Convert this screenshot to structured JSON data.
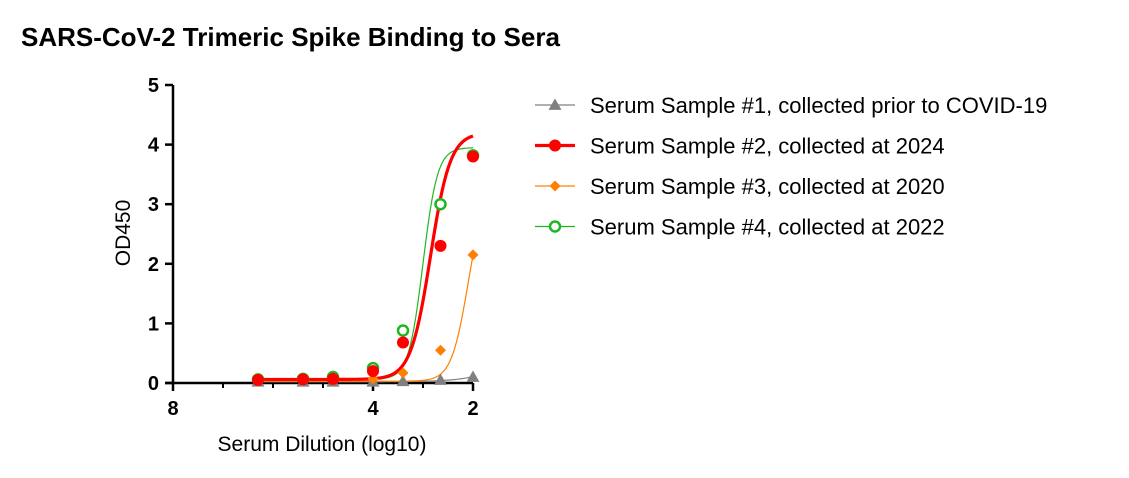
{
  "chart_data": {
    "type": "line",
    "title": "SARS-CoV-2 Trimeric Spike Binding to Sera",
    "xlabel": "Serum Dilution (log10)",
    "ylabel": "OD450",
    "xlim": [
      8,
      2
    ],
    "ylim": [
      0,
      5
    ],
    "x_reversed": true,
    "xticks": [
      "8",
      "4",
      "2"
    ],
    "yticks": [
      "0",
      "1",
      "2",
      "3",
      "4",
      "5"
    ],
    "legend_position": "right",
    "series": [
      {
        "name": "Serum Sample #1, collected prior to COVID-19",
        "color": "#808080",
        "marker": "triangle-filled",
        "line_width": "thin",
        "x": [
          6.3,
          5.4,
          4.8,
          4.0,
          3.4,
          2.65,
          2.0
        ],
        "y": [
          0.02,
          0.02,
          0.02,
          0.02,
          0.03,
          0.05,
          0.1
        ],
        "fit": {
          "bottom": 0.02,
          "top": 4.5,
          "logEC50": 0.3,
          "hill": 1.0
        }
      },
      {
        "name": "Serum Sample #2, collected at 2024",
        "color": "#ff0000",
        "marker": "circle-filled",
        "line_width": "thick",
        "x": [
          6.3,
          5.4,
          4.8,
          4.0,
          3.4,
          2.65,
          2.0
        ],
        "y": [
          0.05,
          0.06,
          0.07,
          0.2,
          0.68,
          2.3,
          3.8
        ],
        "fit": {
          "bottom": 0.06,
          "top": 4.2,
          "logEC50": 2.85,
          "hill": 2.2
        }
      },
      {
        "name": "Serum Sample #3, collected at 2020",
        "color": "#ff8000",
        "marker": "diamond-filled",
        "line_width": "thin",
        "x": [
          6.3,
          5.4,
          4.8,
          4.0,
          3.4,
          2.65,
          2.0
        ],
        "y": [
          0.03,
          0.04,
          0.05,
          0.07,
          0.17,
          0.55,
          2.15
        ],
        "fit": {
          "bottom": 0.03,
          "top": 3.3,
          "logEC50": 2.1,
          "hill": 2.6
        }
      },
      {
        "name": "Serum Sample #4, collected at 2022",
        "color": "#1fb71f",
        "marker": "circle-open",
        "line_width": "thin",
        "x": [
          6.3,
          5.4,
          4.8,
          4.0,
          3.4,
          2.65,
          2.0
        ],
        "y": [
          0.06,
          0.07,
          0.1,
          0.25,
          0.88,
          3.0,
          3.82
        ],
        "fit": {
          "bottom": 0.06,
          "top": 3.95,
          "logEC50": 3.0,
          "hill": 3.0
        }
      }
    ]
  }
}
